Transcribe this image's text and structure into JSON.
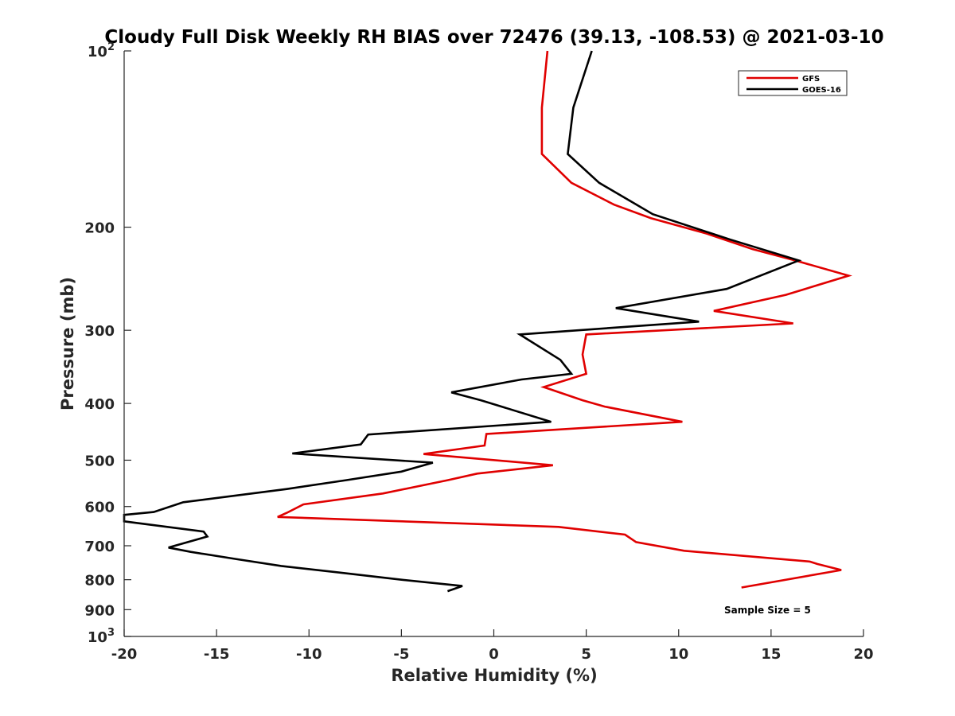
{
  "chart_data": {
    "type": "line",
    "title": "Cloudy Full Disk Weekly RH BIAS over 72476 (39.13, -108.53) @ 2021-03-10",
    "xlabel": "Relative Humidity (%)",
    "ylabel": "Pressure (mb)",
    "xlim": [
      -20,
      20
    ],
    "ylim": [
      100,
      1000
    ],
    "y_scale": "log",
    "y_reversed": true,
    "x_ticks": [
      {
        "value": -20,
        "label": "-20"
      },
      {
        "value": -15,
        "label": "-15"
      },
      {
        "value": -10,
        "label": "-10"
      },
      {
        "value": -5,
        "label": "-5"
      },
      {
        "value": 0,
        "label": "0"
      },
      {
        "value": 5,
        "label": "5"
      },
      {
        "value": 10,
        "label": "10"
      },
      {
        "value": 15,
        "label": "15"
      },
      {
        "value": 20,
        "label": "20"
      }
    ],
    "y_ticks": [
      {
        "value": 100,
        "base": "10",
        "exp": "2"
      },
      {
        "value": 200,
        "label": "200"
      },
      {
        "value": 300,
        "label": "300"
      },
      {
        "value": 400,
        "label": "400"
      },
      {
        "value": 500,
        "label": "500"
      },
      {
        "value": 600,
        "label": "600"
      },
      {
        "value": 700,
        "label": "700"
      },
      {
        "value": 800,
        "label": "800"
      },
      {
        "value": 900,
        "label": "900"
      },
      {
        "value": 1000,
        "base": "10",
        "exp": "3"
      }
    ],
    "grid": false,
    "legend_position": "top-right",
    "series": [
      {
        "name": "GFS",
        "color": "#e00000",
        "points": [
          [
            2.9,
            100
          ],
          [
            2.6,
            125
          ],
          [
            2.6,
            150
          ],
          [
            4.2,
            168
          ],
          [
            6.5,
            183
          ],
          [
            8.5,
            193
          ],
          [
            11.5,
            205
          ],
          [
            14.0,
            218
          ],
          [
            16.3,
            228
          ],
          [
            19.2,
            242
          ],
          [
            15.8,
            261
          ],
          [
            11.9,
            278
          ],
          [
            16.2,
            292
          ],
          [
            5.0,
            305
          ],
          [
            4.8,
            330
          ],
          [
            5.0,
            356
          ],
          [
            2.7,
            375
          ],
          [
            4.8,
            395
          ],
          [
            6.0,
            405
          ],
          [
            10.2,
            430
          ],
          [
            -0.4,
            451
          ],
          [
            -0.5,
            472
          ],
          [
            -3.8,
            488
          ],
          [
            3.2,
            510
          ],
          [
            -0.9,
            527
          ],
          [
            -2.5,
            541
          ],
          [
            -6.0,
            570
          ],
          [
            -10.3,
            595
          ],
          [
            -11.2,
            615
          ],
          [
            -11.7,
            625
          ],
          [
            3.5,
            650
          ],
          [
            7.1,
            670
          ],
          [
            7.7,
            690
          ],
          [
            10.3,
            714
          ],
          [
            17.1,
            745
          ],
          [
            17.5,
            752
          ],
          [
            18.8,
            770
          ],
          [
            13.4,
            825
          ]
        ]
      },
      {
        "name": "GOES-16",
        "color": "#000000",
        "points": [
          [
            5.3,
            100
          ],
          [
            4.3,
            125
          ],
          [
            4.0,
            150
          ],
          [
            5.7,
            168
          ],
          [
            8.6,
            190
          ],
          [
            12.8,
            210
          ],
          [
            16.5,
            228
          ],
          [
            12.6,
            255
          ],
          [
            6.6,
            275
          ],
          [
            11.1,
            290
          ],
          [
            1.4,
            305
          ],
          [
            3.6,
            337
          ],
          [
            4.2,
            356
          ],
          [
            1.5,
            364
          ],
          [
            -2.3,
            383
          ],
          [
            -0.7,
            395
          ],
          [
            3.1,
            430
          ],
          [
            -6.8,
            452
          ],
          [
            -7.2,
            470
          ],
          [
            -10.9,
            487
          ],
          [
            -3.3,
            505
          ],
          [
            -5.0,
            523
          ],
          [
            -8.0,
            541
          ],
          [
            -11.2,
            560
          ],
          [
            -16.8,
            590
          ],
          [
            -18.4,
            613
          ],
          [
            -20.0,
            620
          ],
          [
            -20.0,
            636
          ],
          [
            -15.7,
            662
          ],
          [
            -15.5,
            675
          ],
          [
            -17.6,
            705
          ],
          [
            -16.4,
            717
          ],
          [
            -13.9,
            738
          ],
          [
            -11.5,
            758
          ],
          [
            -8.3,
            778
          ],
          [
            -5.0,
            800
          ],
          [
            -1.7,
            820
          ],
          [
            -2.5,
            837
          ]
        ]
      }
    ],
    "legend": [
      {
        "label": "GFS",
        "color": "#e00000"
      },
      {
        "label": "GOES-16",
        "color": "#000000"
      }
    ],
    "annotations": [
      {
        "text": "Sample Size = 5",
        "position": "bottom-right"
      }
    ]
  }
}
